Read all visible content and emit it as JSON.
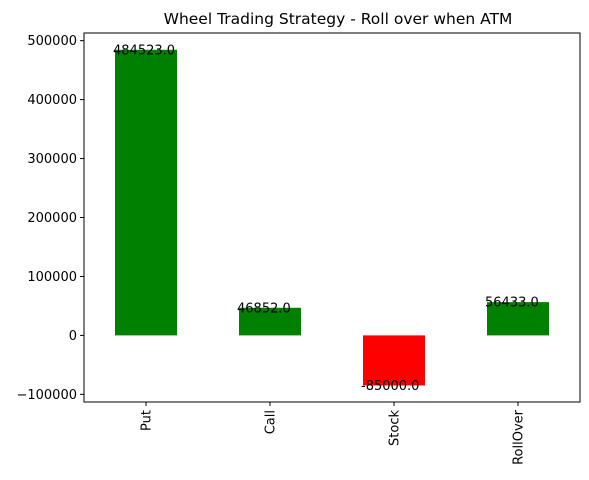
{
  "chart_data": {
    "type": "bar",
    "title": "Wheel Trading Strategy - Roll over when ATM",
    "xlabel": "",
    "ylabel": "",
    "categories": [
      "Put",
      "Call",
      "Stock",
      "RollOver"
    ],
    "values": [
      484523.0,
      46852.0,
      -85000.0,
      56433.0
    ],
    "data_labels": [
      "484523.0",
      "46852.0",
      "-85000.0",
      "56433.0"
    ],
    "colors": [
      "#008000",
      "#008000",
      "#ff0000",
      "#008000"
    ],
    "ylim": [
      -113000,
      513000
    ],
    "yticks": [
      -100000,
      0,
      100000,
      200000,
      300000,
      400000,
      500000
    ],
    "ytick_labels": [
      "−100000",
      "0",
      "100000",
      "200000",
      "300000",
      "400000",
      "500000"
    ],
    "grid": false,
    "legend": "none"
  }
}
